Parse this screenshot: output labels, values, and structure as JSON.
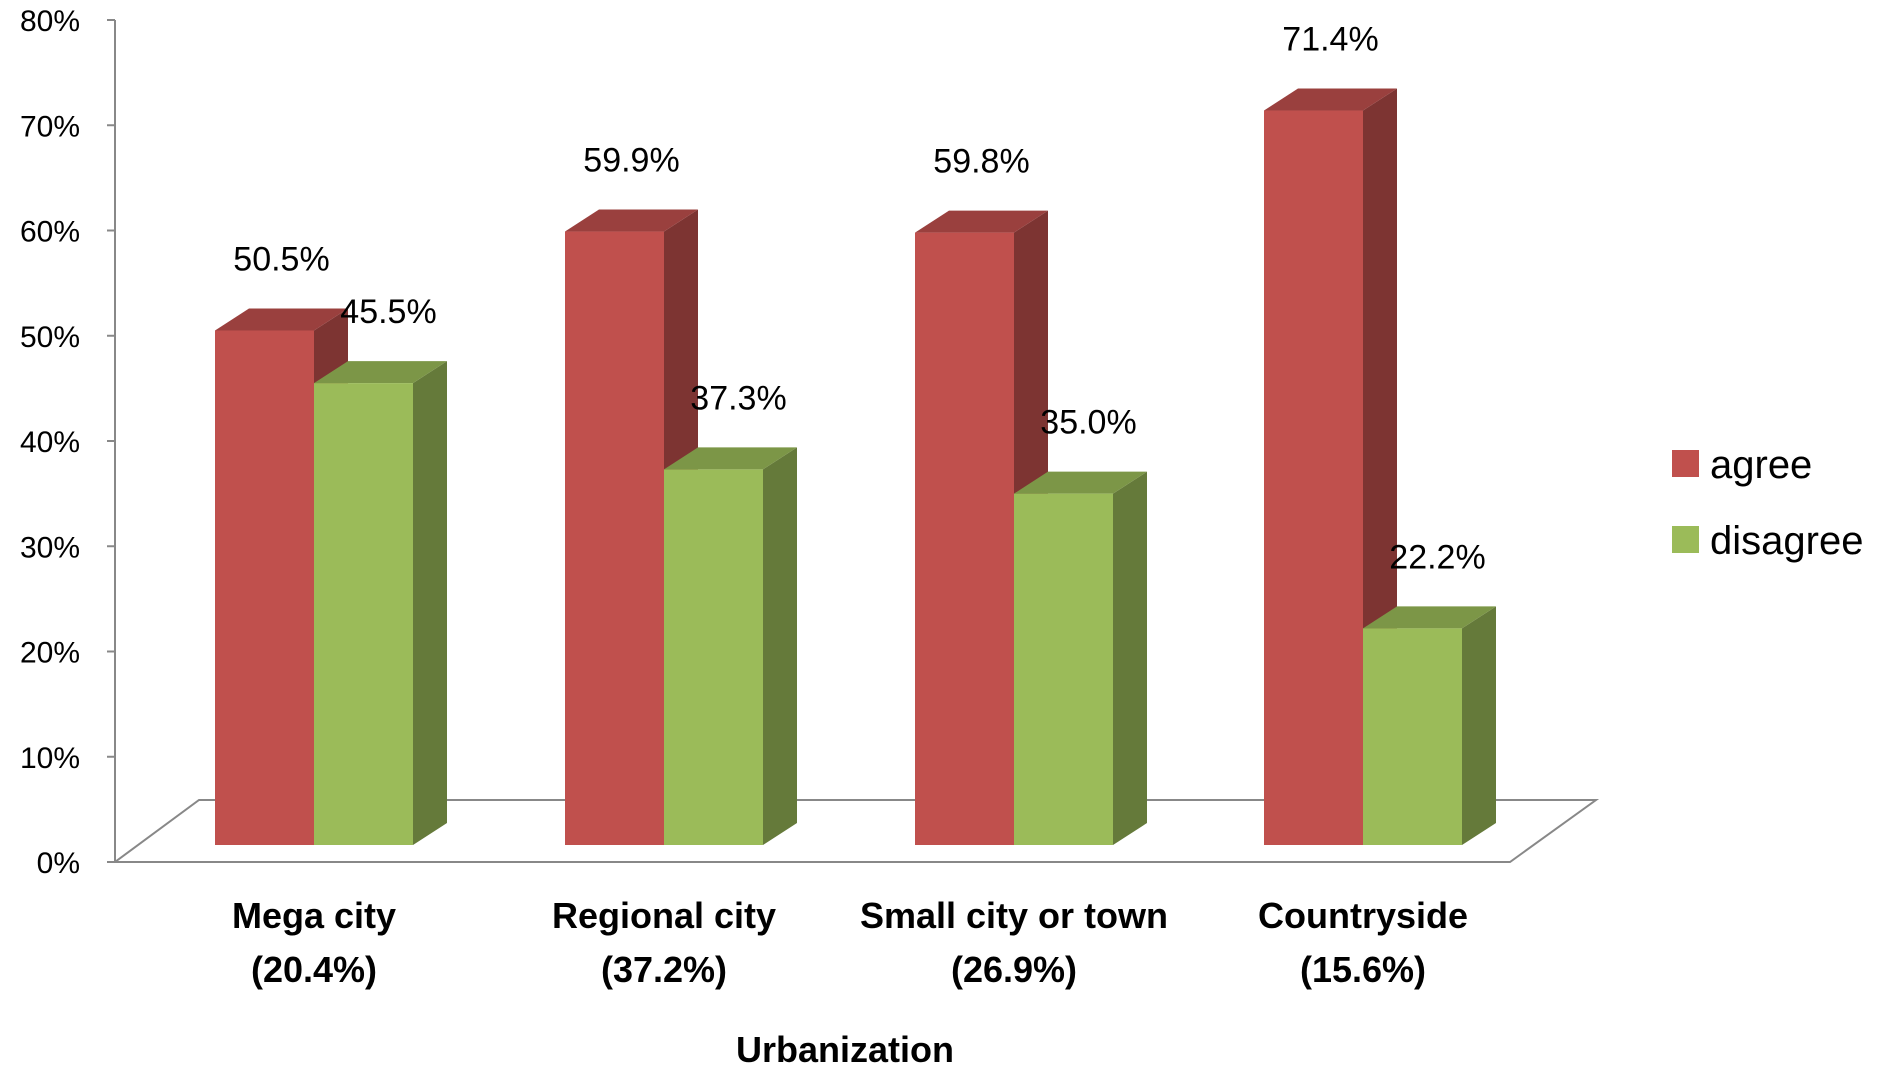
{
  "chart_data": {
    "type": "bar",
    "style": "3d-clustered-column",
    "categories": [
      "Mega city",
      "Regional city",
      "Small city or town",
      "Countryside"
    ],
    "category_shares": [
      "(20.4%)",
      "(37.2%)",
      "(26.9%)",
      "(15.6%)"
    ],
    "series": [
      {
        "name": "agree",
        "values": [
          50.5,
          59.9,
          59.8,
          71.4
        ],
        "labels": [
          "50.5%",
          "59.9%",
          "59.8%",
          "71.4%"
        ],
        "color": "#C0504D"
      },
      {
        "name": "disagree",
        "values": [
          45.5,
          37.3,
          35.0,
          22.2
        ],
        "labels": [
          "45.5%",
          "37.3%",
          "35.0%",
          "22.2%"
        ],
        "color": "#9BBB59"
      }
    ],
    "xlabel": "Urbanization",
    "ylabel": "",
    "ylim": [
      0,
      80
    ],
    "yticks": [
      0,
      10,
      20,
      30,
      40,
      50,
      60,
      70,
      80
    ],
    "ytick_labels": [
      "0%",
      "10%",
      "20%",
      "30%",
      "40%",
      "50%",
      "60%",
      "70%",
      "80%"
    ],
    "grid": false,
    "legend_position": "right"
  }
}
